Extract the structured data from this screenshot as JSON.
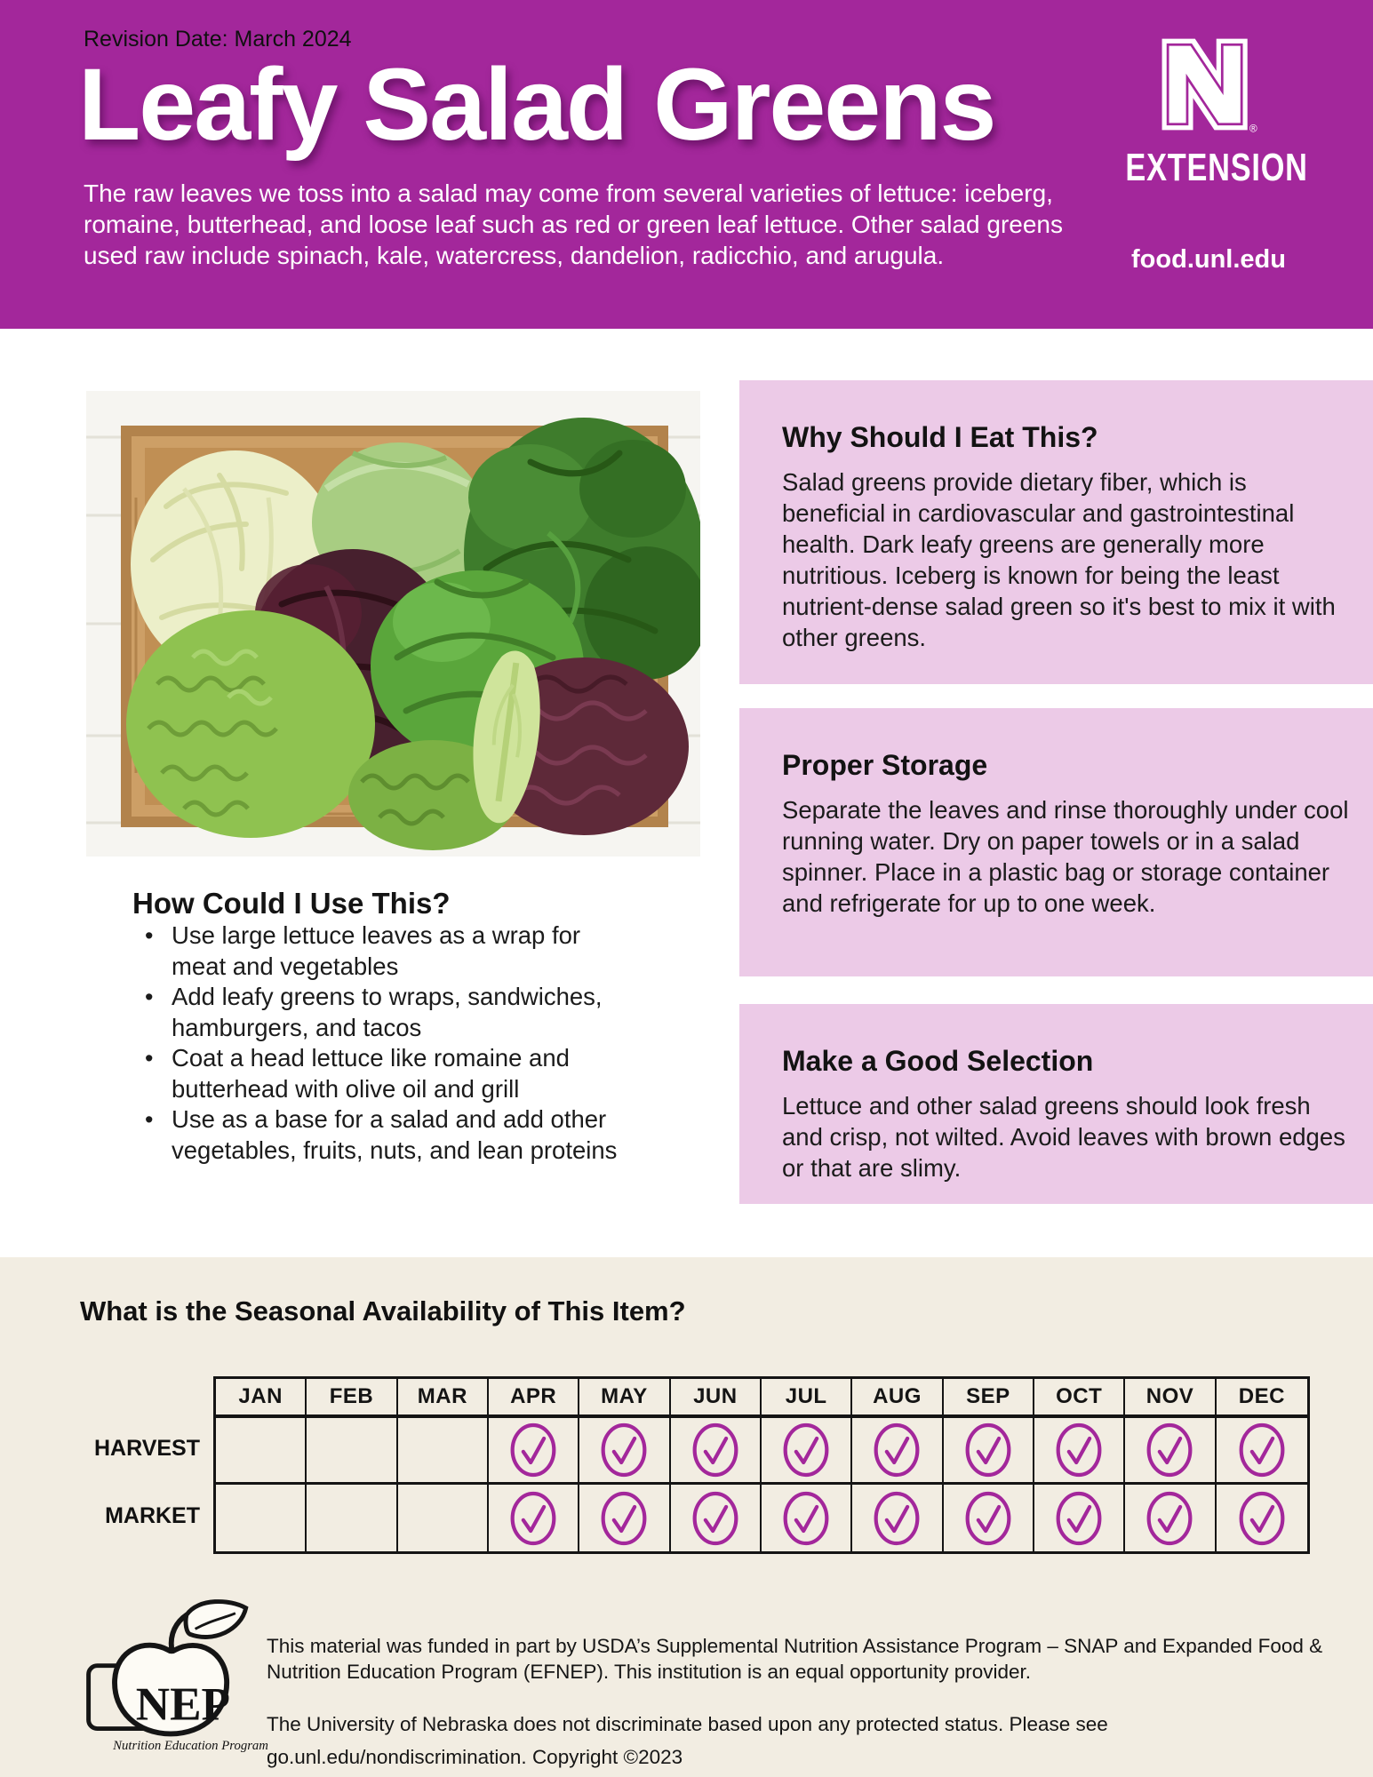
{
  "colors": {
    "header_magenta": "#A3279B",
    "info_box_pink": "#ECCAE7",
    "seasonal_cream": "#F2EDE2",
    "check_magenta": "#A3279B",
    "title_white": "#FFFFFF"
  },
  "header": {
    "revision_date": "Revision Date: March 2024",
    "title": "Leafy Salad Greens",
    "intro": "The raw leaves we toss into a salad may come from several varieties of lettuce: iceberg, romaine, butterhead, and loose leaf such as red or green leaf lettuce. Other salad greens used raw include spinach, kale, watercress, dandelion, radicchio, and arugula.",
    "brand": {
      "logo_letter": "N",
      "registered_mark": "®",
      "org": "EXTENSION",
      "site": "food.unl.edu"
    }
  },
  "photo": {
    "description": "Overhead photo of a wooden crate filled with assorted salad greens: napa cabbage, iceberg, butterhead, red oak leaf, frisée, lollo rosso, and romaine"
  },
  "info_boxes": [
    {
      "title": "Why Should I Eat This?",
      "body": "Salad greens provide dietary fiber, which is beneficial in cardiovascular and gastrointestinal health. Dark leafy greens are generally more nutritious. Iceberg is known for being the least nutrient-dense salad green so it's best to mix it with other greens."
    },
    {
      "title": "Proper Storage",
      "body": "Separate the leaves and rinse thoroughly under cool running water. Dry on paper towels or in a salad spinner. Place in a plastic bag or storage container and refrigerate for up to one week."
    },
    {
      "title": "Make a Good Selection",
      "body": "Lettuce and other salad greens should look fresh and crisp, not wilted. Avoid leaves with brown edges or that are slimy."
    }
  ],
  "usage": {
    "title": "How Could I Use This?",
    "bullets": [
      "Use large lettuce leaves as a wrap for meat and vegetables",
      "Add leafy greens to wraps, sandwiches, hamburgers, and tacos",
      "Coat a head lettuce like romaine and butterhead with olive oil and grill",
      "Use as a base for a salad and add other vegetables, fruits, nuts, and lean proteins"
    ]
  },
  "seasonal": {
    "heading": "What is the Seasonal Availability of This Item?",
    "months": [
      "JAN",
      "FEB",
      "MAR",
      "APR",
      "MAY",
      "JUN",
      "JUL",
      "AUG",
      "SEP",
      "OCT",
      "NOV",
      "DEC"
    ],
    "rows": [
      {
        "label": "HARVEST",
        "available": [
          false,
          false,
          false,
          true,
          true,
          true,
          true,
          true,
          true,
          true,
          true,
          true
        ]
      },
      {
        "label": "MARKET",
        "available": [
          false,
          false,
          false,
          true,
          true,
          true,
          true,
          true,
          true,
          true,
          true,
          true
        ]
      }
    ]
  },
  "footer": {
    "nep": {
      "acronym": "NEP",
      "caption": "Nutrition Education Program"
    },
    "funding": "This material was funded in part by USDA’s Supplemental Nutrition Assistance Program – SNAP and Expanded Food & Nutrition Education Program (EFNEP).  This institution is an equal opportunity provider.",
    "nondiscrimination": "The University of Nebraska does not discriminate based upon any protected status. Please see go.unl.edu/nondiscrimination. Copyright ©2023"
  }
}
